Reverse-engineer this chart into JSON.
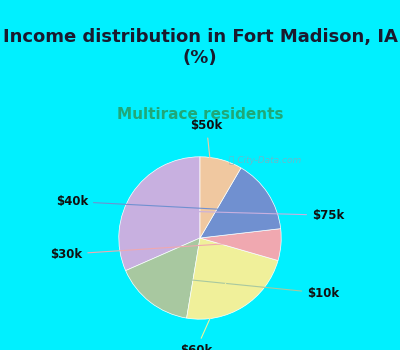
{
  "title": "Income distribution in Fort Madison, IA\n(%)",
  "subtitle": "Multirace residents",
  "labels": [
    "$75k",
    "$10k",
    "$60k",
    "$30k",
    "$40k",
    "$50k"
  ],
  "values": [
    30,
    15,
    22,
    6,
    14,
    8
  ],
  "colors": [
    "#c8b0e0",
    "#a8c8a0",
    "#f0f09a",
    "#f0a8b0",
    "#7090d0",
    "#f0c8a0"
  ],
  "background_cyan": "#00f0ff",
  "background_chart": "#ddf0e8",
  "title_fontsize": 13,
  "subtitle_fontsize": 11,
  "subtitle_color": "#20a878",
  "label_fontsize": 8.5,
  "startangle": 90,
  "watermark": "Ⓜ City-Data.com"
}
